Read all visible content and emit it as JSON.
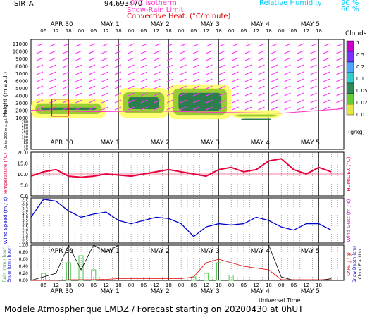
{
  "header": {
    "station": "SIRTA",
    "lon": "94.693470",
    "isotherm_label": "0°C isotherm",
    "snow_rain_label": "Snow-Rain Limit",
    "convective_label": "Convective Heat. (°C/minute)",
    "rh_label": "Relative Humidity",
    "rh_high": "90 %",
    "rh_low": "60 %",
    "rh_high_color": "#00ccff",
    "rh_low_color": "#00ccff"
  },
  "footer": "Modele Atmospherique LMDZ / Forecast starting on 20200430 at 0hUT",
  "xaxis": {
    "title": "Universal Time",
    "day_labels": [
      "APR 30",
      "MAY  1",
      "MAY  2",
      "MAY  3",
      "MAY  4",
      "MAY  5"
    ],
    "hour_labels": [
      "06",
      "12",
      "18",
      "00",
      "06",
      "12",
      "18",
      "00",
      "06",
      "12",
      "18",
      "00",
      "06",
      "12",
      "18",
      "00",
      "06",
      "12",
      "18",
      "00",
      "06",
      "12",
      "18"
    ]
  },
  "panels": {
    "cloud": {
      "ylabel": "Height  (m a.s.l.)",
      "ylabel2": "Up to 200 m a.g.l.",
      "yticks_upper": [
        "11000",
        "10000",
        "9000",
        "8000",
        "7000",
        "6000",
        "5000",
        "4000",
        "3000",
        "2000",
        "1000"
      ],
      "yticks_lower": [
        "200",
        "180",
        "160",
        "140",
        "120",
        "100",
        "80",
        "60",
        "40",
        "20"
      ],
      "colorbar_title": "Clouds",
      "colorbar_labels": [
        "1",
        "0.5",
        "0.2",
        "0.1",
        "0.05",
        "0.02",
        "0.01"
      ],
      "colorbar_colors": [
        "#cc00cc",
        "#7733ff",
        "#4da6ff",
        "#33cccc",
        "#2e8b57",
        "#66cc33",
        "#e6e640"
      ],
      "colorbar_unit": "(g/kg)",
      "cloud_colors": {
        "low": "#ffff66",
        "mid": "#99cc33",
        "high": "#2e7d4f"
      },
      "wind_arrow_color": "#ff33ff",
      "isotherm_color": "#ff33cc",
      "convective_color": "#e00000"
    },
    "temperature": {
      "ylabel": "Temperature (°C)",
      "ylabel2": "HUMIDEX (°C)",
      "yticks": [
        "20.0",
        "15.0",
        "10.0",
        "5.0",
        "0.0"
      ],
      "line_color": "#e8003a"
    },
    "wind": {
      "ylabel": "Wind Speed (m / s)",
      "ylabel2": "Wind Gust (m / s)",
      "yticks": [
        "7.0",
        "6.5",
        "6.0",
        "5.5",
        "5.0",
        "4.5",
        "4.0",
        "3.5",
        "3.0",
        "2.5",
        "2.0",
        "1.5",
        "1.0",
        "0.5",
        "0.0"
      ],
      "line_color": "#0000cc"
    },
    "precip": {
      "ylabel": "Rain (mm / hour)",
      "ylabel_b": "Snow (cm / hour)",
      "ylabel2": "CAPE (J / g)",
      "ylabel2_b": "Snow Depth (cm)",
      "ylabel2_c": "Cloud Fraction",
      "yticks": [
        "1.00",
        "0.80",
        "0.60",
        "0.40",
        "0.20",
        "0.00"
      ],
      "rain_color": "#44cc44",
      "cape_color": "#e00000",
      "cloudfrac_color": "#000000"
    }
  },
  "chart_data": {
    "type": "line",
    "x_hours_from_start": [
      0,
      6,
      12,
      18,
      24,
      30,
      36,
      42,
      48,
      54,
      60,
      66,
      72,
      78,
      84,
      90,
      96,
      102,
      108,
      114,
      120,
      126,
      132,
      138,
      144
    ],
    "temperature": {
      "name": "Temperature",
      "ylim": [
        0,
        20
      ],
      "values": [
        9,
        11,
        12,
        9,
        8.5,
        9,
        10,
        9.5,
        9,
        10,
        11,
        12,
        11,
        10,
        9,
        12,
        13,
        11,
        12,
        16,
        17,
        12,
        10,
        13,
        11
      ]
    },
    "wind_speed": {
      "name": "Wind Speed",
      "ylim": [
        0,
        7
      ],
      "values": [
        4,
        6.8,
        6.5,
        5,
        4,
        4.5,
        4.8,
        3.5,
        3,
        3.5,
        4,
        3.8,
        3,
        1,
        2.5,
        3,
        2.8,
        3,
        4,
        3.5,
        2.5,
        2,
        3,
        3,
        2
      ]
    },
    "cloud_fraction": {
      "name": "Cloud Fraction",
      "ylim": [
        0,
        1
      ],
      "values": [
        0,
        0.1,
        0.2,
        1,
        0.3,
        1,
        0.8,
        1,
        1,
        1,
        1,
        1,
        1,
        1,
        1,
        1,
        1,
        1,
        1,
        1,
        0.1,
        0,
        0,
        0,
        0.05
      ]
    },
    "cape": {
      "name": "CAPE",
      "ylim": [
        0,
        1
      ],
      "values": [
        0,
        0,
        0,
        0.02,
        0.02,
        0.02,
        0.03,
        0.05,
        0.05,
        0.05,
        0.05,
        0.05,
        0.05,
        0.1,
        0.5,
        0.6,
        0.5,
        0.4,
        0.35,
        0.3,
        0.02,
        0.02,
        0.02,
        0.02,
        0.02
      ]
    },
    "rain": {
      "name": "Rain",
      "ylim": [
        0,
        1
      ],
      "values": [
        0,
        0.2,
        0,
        0.5,
        0.7,
        0.3,
        0,
        0,
        0,
        0,
        0,
        0,
        0,
        0.1,
        0.2,
        0.5,
        0.15,
        0,
        0,
        0,
        0,
        0,
        0,
        0,
        0
      ]
    },
    "cloud_layers": [
      {
        "start": 0,
        "end": 36,
        "base": 900,
        "top": 3500,
        "level": 0.05
      },
      {
        "start": 42,
        "end": 66,
        "base": 1000,
        "top": 5000,
        "level": 0.1
      },
      {
        "start": 66,
        "end": 96,
        "base": 800,
        "top": 5500,
        "level": 0.1
      },
      {
        "start": 96,
        "end": 120,
        "base": 1000,
        "top": 2000,
        "level": 0.05
      }
    ]
  }
}
